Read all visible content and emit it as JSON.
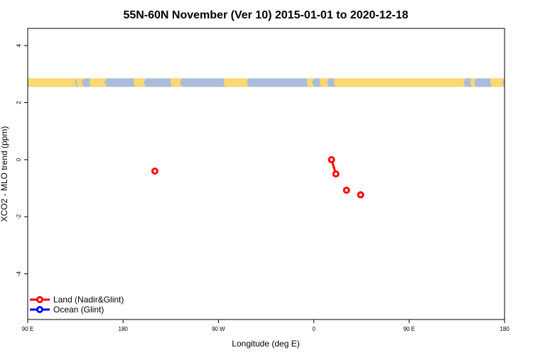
{
  "chart_data": {
    "type": "line",
    "title": "55N-60N November (Ver 10)   2015-01-01 to 2020-12-18",
    "xlabel": "Longitude (deg E)",
    "ylabel": "XCO2 - MLO trend (ppm)",
    "xlim": [
      -90,
      180
    ],
    "ylim": [
      -5.6,
      4.6
    ],
    "x_ticks": [
      {
        "value": -90,
        "label": "90 E"
      },
      {
        "value": -36,
        "label": "180"
      },
      {
        "value": 18,
        "label": "90 W"
      },
      {
        "value": 72,
        "label": "0"
      },
      {
        "value": 126,
        "label": "90 E"
      },
      {
        "value": 180,
        "label": "180"
      }
    ],
    "y_ticks": [
      {
        "value": -4,
        "label": "-4"
      },
      {
        "value": -2,
        "label": "-2"
      },
      {
        "value": 0,
        "label": "0"
      },
      {
        "value": 2,
        "label": "2"
      },
      {
        "value": 4,
        "label": "4"
      }
    ],
    "map_strip": {
      "y_range": [
        2.55,
        2.85
      ],
      "land_color": "#FDD870",
      "ocean_color": "#A9BDDB"
    },
    "series": [
      {
        "name": "Land (Nadir&Glint)",
        "color": "#FF0000",
        "segments": [
          [
            {
              "x": -18,
              "y": -0.4
            }
          ],
          [
            {
              "x": 82,
              "y": 0.0
            },
            {
              "x": 84.5,
              "y": -0.5
            }
          ],
          [
            {
              "x": 90.5,
              "y": -1.07
            }
          ],
          [
            {
              "x": 98.5,
              "y": -1.23
            }
          ]
        ]
      },
      {
        "name": "Ocean (Glint)",
        "color": "#0000FF",
        "segments": []
      }
    ],
    "legend_position": "bottom-left",
    "grid": false
  }
}
